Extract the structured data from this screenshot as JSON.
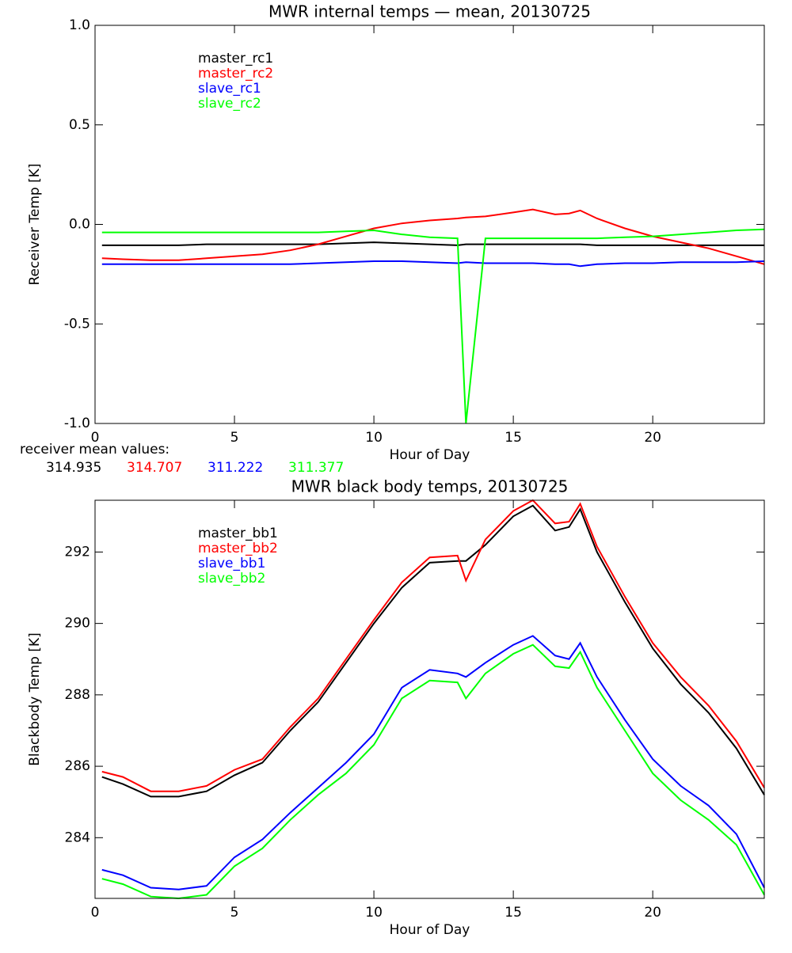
{
  "chart_data": [
    {
      "type": "line",
      "title": "MWR internal temps — mean, 20130725",
      "xlabel": "Hour of Day",
      "ylabel": "Receiver Temp [K]",
      "x": [
        0.25,
        1,
        2,
        3,
        4,
        5,
        6,
        7,
        8,
        9,
        10,
        11,
        12,
        13,
        13.3,
        14,
        15,
        15.7,
        16.5,
        17,
        17.4,
        18,
        19,
        20,
        21,
        22,
        23,
        24
      ],
      "series": [
        {
          "name": "master_rc1",
          "color": "#000000",
          "values": [
            -0.105,
            -0.105,
            -0.105,
            -0.105,
            -0.1,
            -0.1,
            -0.1,
            -0.1,
            -0.1,
            -0.095,
            -0.09,
            -0.095,
            -0.1,
            -0.105,
            -0.1,
            -0.1,
            -0.1,
            -0.1,
            -0.1,
            -0.1,
            -0.1,
            -0.105,
            -0.105,
            -0.105,
            -0.105,
            -0.105,
            -0.105,
            -0.105
          ]
        },
        {
          "name": "master_rc2",
          "color": "#ff0000",
          "values": [
            -0.17,
            -0.175,
            -0.18,
            -0.18,
            -0.17,
            -0.16,
            -0.15,
            -0.13,
            -0.1,
            -0.06,
            -0.02,
            0.005,
            0.02,
            0.03,
            0.035,
            0.04,
            0.06,
            0.075,
            0.05,
            0.055,
            0.07,
            0.03,
            -0.02,
            -0.06,
            -0.09,
            -0.12,
            -0.16,
            -0.2
          ]
        },
        {
          "name": "slave_rc1",
          "color": "#0000ff",
          "values": [
            -0.2,
            -0.2,
            -0.2,
            -0.2,
            -0.2,
            -0.2,
            -0.2,
            -0.2,
            -0.195,
            -0.19,
            -0.185,
            -0.185,
            -0.19,
            -0.195,
            -0.19,
            -0.195,
            -0.195,
            -0.195,
            -0.2,
            -0.2,
            -0.21,
            -0.2,
            -0.195,
            -0.195,
            -0.19,
            -0.19,
            -0.19,
            -0.185
          ]
        },
        {
          "name": "slave_rc2",
          "color": "#00ff00",
          "values": [
            -0.04,
            -0.04,
            -0.04,
            -0.04,
            -0.04,
            -0.04,
            -0.04,
            -0.04,
            -0.04,
            -0.035,
            -0.03,
            -0.05,
            -0.065,
            -0.07,
            -1.0,
            -0.07,
            -0.07,
            -0.07,
            -0.07,
            -0.07,
            -0.07,
            -0.07,
            -0.065,
            -0.06,
            -0.05,
            -0.04,
            -0.03,
            -0.025
          ]
        }
      ],
      "xlim": [
        0,
        24
      ],
      "xticks": [
        0,
        5,
        10,
        15,
        20
      ],
      "ylim": [
        -1.0,
        1.0
      ],
      "yticks": [
        {
          "value": -1.0,
          "label": "-1.0"
        },
        {
          "value": -0.5,
          "label": "-0.5"
        },
        {
          "value": 0.0,
          "label": "0.0"
        },
        {
          "value": 0.5,
          "label": "0.5"
        },
        {
          "value": 1.0,
          "label": "1.0"
        }
      ],
      "legend": "upper left",
      "mean_label": "receiver mean values:",
      "mean_values": [
        314.935,
        314.707,
        311.222,
        311.377
      ]
    },
    {
      "type": "line",
      "title": "MWR black body temps, 20130725",
      "xlabel": "Hour of Day",
      "ylabel": "Blackbody Temp [K]",
      "x": [
        0.25,
        1,
        2,
        3,
        4,
        5,
        6,
        7,
        8,
        9,
        10,
        11,
        12,
        13,
        13.3,
        14,
        15,
        15.7,
        16.5,
        17,
        17.4,
        18,
        19,
        20,
        21,
        22,
        23,
        24
      ],
      "series": [
        {
          "name": "master_bb1",
          "color": "#000000",
          "values": [
            285.7,
            285.5,
            285.15,
            285.15,
            285.3,
            285.75,
            286.1,
            287.0,
            287.8,
            288.9,
            290.0,
            291.0,
            291.7,
            291.75,
            291.75,
            292.2,
            293.0,
            293.3,
            292.6,
            292.7,
            293.2,
            292.0,
            290.6,
            289.3,
            288.3,
            287.5,
            286.5,
            285.2
          ]
        },
        {
          "name": "master_bb2",
          "color": "#ff0000",
          "values": [
            285.85,
            285.7,
            285.3,
            285.3,
            285.45,
            285.9,
            286.2,
            287.1,
            287.9,
            289.0,
            290.1,
            291.15,
            291.85,
            291.9,
            291.2,
            292.35,
            293.15,
            293.45,
            292.8,
            292.85,
            293.35,
            292.15,
            290.75,
            289.45,
            288.5,
            287.7,
            286.7,
            285.4
          ]
        },
        {
          "name": "slave_bb1",
          "color": "#0000ff",
          "values": [
            283.1,
            282.95,
            282.6,
            282.55,
            282.65,
            283.45,
            283.95,
            284.7,
            285.4,
            286.1,
            286.9,
            288.2,
            288.7,
            288.6,
            288.5,
            288.9,
            289.4,
            289.65,
            289.1,
            289.0,
            289.45,
            288.5,
            287.3,
            286.2,
            285.45,
            284.9,
            284.1,
            282.6
          ]
        },
        {
          "name": "slave_bb2",
          "color": "#00ff00",
          "values": [
            282.85,
            282.7,
            282.35,
            282.3,
            282.4,
            283.2,
            283.7,
            284.5,
            285.2,
            285.8,
            286.6,
            287.9,
            288.4,
            288.35,
            287.9,
            288.6,
            289.15,
            289.4,
            288.8,
            288.75,
            289.2,
            288.2,
            287.0,
            285.8,
            285.05,
            284.5,
            283.8,
            282.4
          ]
        }
      ],
      "xlim": [
        0,
        24
      ],
      "xticks": [
        0,
        5,
        10,
        15,
        20
      ],
      "ylim": [
        282.3,
        293.45
      ],
      "yticks": [
        284,
        286,
        288,
        290,
        292
      ],
      "legend": "upper left"
    }
  ]
}
